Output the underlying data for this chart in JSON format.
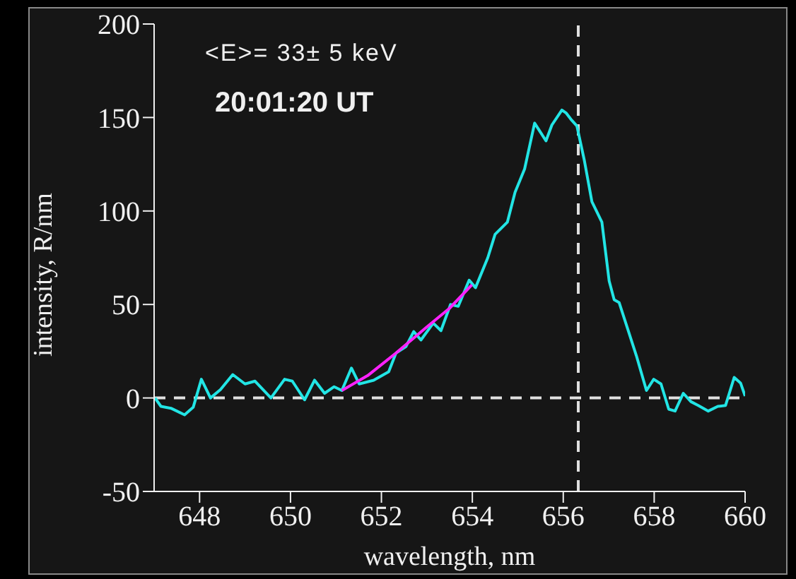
{
  "chart_data": {
    "type": "line",
    "xlabel": "wavelength, nm",
    "ylabel": "intensity, R/nm",
    "annotations": [
      "<E>= 33± 5 keV",
      "20:01:20 UT"
    ],
    "xlim": [
      647,
      660
    ],
    "xticks": [
      648,
      650,
      652,
      654,
      656,
      658,
      660
    ],
    "ylim": [
      -50,
      200
    ],
    "yticks": [
      -50,
      0,
      50,
      100,
      150,
      200
    ],
    "grid": false,
    "legend": false,
    "marker": "none",
    "line_style": "solid",
    "ref_lines": [
      {
        "axis": "x",
        "value": 656.33,
        "color": "#e0e0e0",
        "line_style": "dashed"
      },
      {
        "axis": "y",
        "value": 0,
        "color": "#e0e0e0",
        "line_style": "dashed"
      }
    ],
    "series": [
      {
        "color": "#22e5e5",
        "x": [
          647.02,
          647.15,
          647.37,
          647.67,
          647.86,
          648.04,
          648.24,
          648.46,
          648.73,
          649.0,
          649.22,
          649.57,
          649.87,
          650.04,
          650.31,
          650.53,
          650.75,
          650.96,
          651.13,
          651.34,
          651.51,
          651.83,
          652.16,
          652.32,
          652.54,
          652.71,
          652.87,
          653.14,
          653.31,
          653.52,
          653.69,
          653.93,
          654.07,
          654.34,
          654.5,
          654.77,
          654.94,
          655.15,
          655.37,
          655.62,
          655.75,
          655.97,
          656.06,
          656.17,
          656.3,
          656.46,
          656.63,
          656.85,
          657.01,
          657.12,
          657.23,
          657.61,
          657.83,
          657.99,
          658.15,
          658.32,
          658.46,
          658.64,
          658.81,
          658.97,
          659.19,
          659.4,
          659.57,
          659.76,
          659.9,
          660.0
        ],
        "values": [
          0,
          -4.5,
          -5.5,
          -9,
          -5,
          10,
          0,
          4.5,
          12.5,
          7.5,
          9,
          0,
          10,
          9,
          -1,
          9.5,
          2.5,
          6,
          4,
          16,
          7.5,
          9.5,
          14,
          24,
          27.5,
          35.5,
          31,
          40,
          36,
          50,
          49,
          63,
          59,
          75,
          87.5,
          94,
          110,
          122.5,
          147,
          137.5,
          146,
          154,
          152.5,
          149,
          145.5,
          127.5,
          105,
          94,
          62.5,
          52.5,
          51,
          22.5,
          4,
          10,
          7.5,
          -6,
          -7,
          2.5,
          -2,
          -4,
          -7,
          -4.5,
          -4,
          11,
          8,
          1
        ]
      },
      {
        "type": "line",
        "color": "#ff22ff",
        "x": [
          651.13,
          651.7,
          652.32,
          653.0,
          653.5,
          653.99
        ],
        "values": [
          4,
          12,
          24,
          38,
          48,
          60.5
        ]
      }
    ]
  }
}
